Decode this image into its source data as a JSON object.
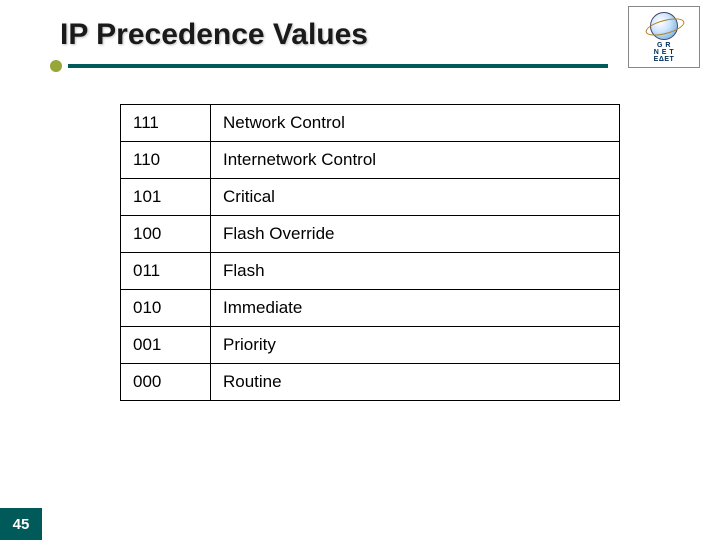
{
  "title": "IP Precedence Values",
  "logo": {
    "line1": "G R",
    "line2": "N E T",
    "line3": "ΕΔΕΤ"
  },
  "table": {
    "rows": [
      {
        "code": "111",
        "label": "Network Control"
      },
      {
        "code": "110",
        "label": "Internetwork Control"
      },
      {
        "code": "101",
        "label": "Critical"
      },
      {
        "code": "100",
        "label": "Flash Override"
      },
      {
        "code": "011",
        "label": "Flash"
      },
      {
        "code": "010",
        "label": "Immediate"
      },
      {
        "code": "001",
        "label": "Priority"
      },
      {
        "code": "000",
        "label": "Routine"
      }
    ]
  },
  "page_number": "45",
  "colors": {
    "accent_bar": "#005a5a",
    "accent_dot": "#97a636",
    "text": "#000000",
    "border": "#000000",
    "bg": "#ffffff"
  }
}
